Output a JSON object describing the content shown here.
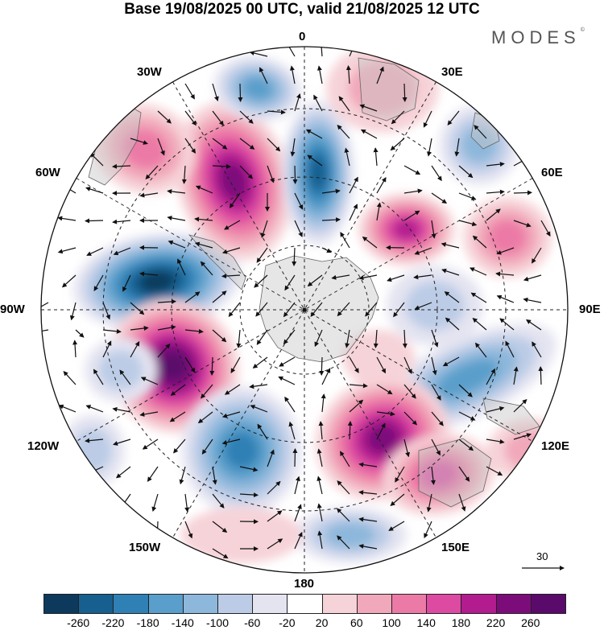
{
  "title": "Base 19/08/2025 00 UTC, valid 21/08/2025 12 UTC",
  "brand": "MODES",
  "brand_mark": "©",
  "longitude_labels": {
    "lon_0": "0",
    "lon_30e": "30E",
    "lon_60e": "60E",
    "lon_90e": "90E",
    "lon_120e": "120E",
    "lon_150e": "150E",
    "lon_180": "180",
    "lon_150w": "150W",
    "lon_120w": "120W",
    "lon_90w": "90W",
    "lon_60w": "60W",
    "lon_30w": "30W"
  },
  "vector_reference": {
    "value": "30"
  },
  "colorbar": {
    "tick_labels": [
      "-260",
      "-220",
      "-180",
      "-140",
      "-100",
      "-60",
      "-20",
      "20",
      "60",
      "100",
      "140",
      "180",
      "220",
      "260"
    ],
    "colors": [
      "#0d3a5c",
      "#165f8f",
      "#2f80b5",
      "#5a9fcb",
      "#8db7db",
      "#bccce6",
      "#e4e4f1",
      "#ffffff",
      "#f6d3d8",
      "#f1a8ba",
      "#ec7aa6",
      "#dd4aa2",
      "#b31c8f",
      "#7d0c7b",
      "#5a0a6b"
    ]
  }
}
